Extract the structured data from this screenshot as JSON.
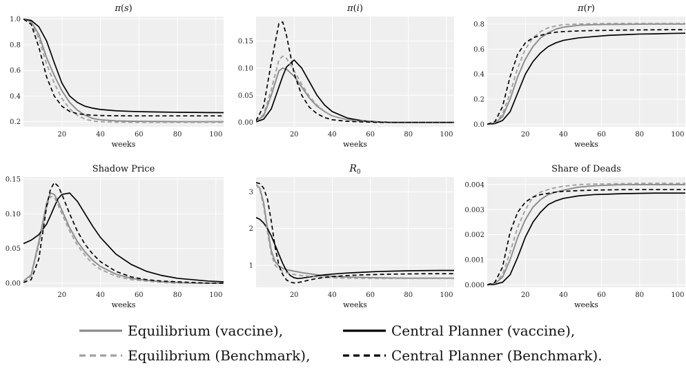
{
  "colors": {
    "panel_bg": "#efefef",
    "grid": "#ffffff",
    "equilibrium": "#8a8a8a",
    "equilibrium_bench": "#a0a0a0",
    "planner": "#000000"
  },
  "legend": {
    "items": [
      {
        "label": "Equilibrium (vaccine),",
        "color": "#8a8a8a",
        "dash": "solid"
      },
      {
        "label": "Central Planner (vaccine),",
        "color": "#000000",
        "dash": "solid"
      },
      {
        "label": "Equilibrium (Benchmark),",
        "color": "#a0a0a0",
        "dash": "dashed"
      },
      {
        "label": "Central Planner (Benchmark).",
        "color": "#000000",
        "dash": "dashed"
      }
    ]
  },
  "chart_data": [
    {
      "type": "line",
      "title": "π(s)",
      "xlabel": "weeks",
      "xlim": [
        0,
        104
      ],
      "ylim": [
        0.16,
        1.02
      ],
      "xticks": [
        20,
        40,
        60,
        80,
        100
      ],
      "yticks": [
        0.2,
        0.4,
        0.6,
        0.8,
        1.0
      ],
      "ytick_labels": [
        "0.2",
        "0.4",
        "0.6",
        "0.8",
        "1.0"
      ],
      "x": [
        0,
        4,
        8,
        12,
        16,
        20,
        24,
        28,
        32,
        36,
        40,
        48,
        56,
        64,
        72,
        80,
        88,
        96,
        104
      ],
      "series": [
        {
          "name": "Equilibrium (vaccine)",
          "values": [
            1.0,
            0.98,
            0.88,
            0.7,
            0.56,
            0.44,
            0.35,
            0.29,
            0.25,
            0.225,
            0.215,
            0.206,
            0.203,
            0.202,
            0.201,
            0.2,
            0.2,
            0.2,
            0.2
          ]
        },
        {
          "name": "Central Planner (vaccine)",
          "values": [
            1.0,
            0.99,
            0.94,
            0.83,
            0.66,
            0.5,
            0.4,
            0.35,
            0.32,
            0.305,
            0.295,
            0.285,
            0.28,
            0.277,
            0.275,
            0.273,
            0.272,
            0.271,
            0.27
          ]
        },
        {
          "name": "Equilibrium (Benchmark)",
          "values": [
            1.0,
            0.97,
            0.85,
            0.65,
            0.5,
            0.38,
            0.3,
            0.25,
            0.22,
            0.205,
            0.2,
            0.196,
            0.195,
            0.195,
            0.195,
            0.195,
            0.195,
            0.195,
            0.195
          ]
        },
        {
          "name": "Central Planner (Benchmark)",
          "values": [
            1.0,
            0.96,
            0.78,
            0.55,
            0.4,
            0.32,
            0.28,
            0.262,
            0.255,
            0.25,
            0.248,
            0.246,
            0.245,
            0.245,
            0.245,
            0.245,
            0.245,
            0.245,
            0.245
          ]
        }
      ]
    },
    {
      "type": "line",
      "title": "π(i)",
      "xlabel": "weeks",
      "xlim": [
        0,
        104
      ],
      "ylim": [
        -0.008,
        0.195
      ],
      "xticks": [
        20,
        40,
        60,
        80,
        100
      ],
      "yticks": [
        0.0,
        0.05,
        0.1,
        0.15
      ],
      "ytick_labels": [
        "0.00",
        "0.05",
        "0.10",
        "0.15"
      ],
      "x": [
        0,
        4,
        8,
        12,
        14,
        16,
        20,
        24,
        28,
        32,
        36,
        40,
        48,
        56,
        64,
        72,
        80,
        88,
        96,
        104
      ],
      "series": [
        {
          "name": "Equilibrium (vaccine)",
          "values": [
            0.002,
            0.012,
            0.05,
            0.095,
            0.1,
            0.098,
            0.085,
            0.065,
            0.045,
            0.03,
            0.02,
            0.012,
            0.005,
            0.002,
            0.001,
            0.0,
            0.0,
            0.0,
            0.0,
            0.0
          ]
        },
        {
          "name": "Central Planner (vaccine)",
          "values": [
            0.001,
            0.006,
            0.025,
            0.065,
            0.085,
            0.102,
            0.115,
            0.1,
            0.075,
            0.05,
            0.032,
            0.02,
            0.008,
            0.003,
            0.001,
            0.0,
            0.0,
            0.0,
            0.0,
            0.0
          ]
        },
        {
          "name": "Equilibrium (Benchmark)",
          "values": [
            0.002,
            0.015,
            0.06,
            0.115,
            0.122,
            0.118,
            0.095,
            0.07,
            0.048,
            0.032,
            0.02,
            0.012,
            0.005,
            0.002,
            0.001,
            0.0,
            0.0,
            0.0,
            0.0,
            0.0
          ]
        },
        {
          "name": "Central Planner (Benchmark)",
          "values": [
            0.003,
            0.03,
            0.11,
            0.182,
            0.185,
            0.16,
            0.09,
            0.05,
            0.028,
            0.016,
            0.009,
            0.005,
            0.002,
            0.001,
            0.0,
            0.0,
            0.0,
            0.0,
            0.0,
            0.0
          ]
        }
      ]
    },
    {
      "type": "line",
      "title": "π(r)",
      "xlabel": "weeks",
      "xlim": [
        0,
        104
      ],
      "ylim": [
        -0.02,
        0.86
      ],
      "xticks": [
        20,
        40,
        60,
        80,
        100
      ],
      "yticks": [
        0.0,
        0.2,
        0.4,
        0.6,
        0.8
      ],
      "ytick_labels": [
        "0.0",
        "0.2",
        "0.4",
        "0.6",
        "0.8"
      ],
      "x": [
        0,
        4,
        8,
        12,
        16,
        20,
        24,
        28,
        32,
        36,
        40,
        48,
        56,
        64,
        72,
        80,
        88,
        96,
        104
      ],
      "series": [
        {
          "name": "Equilibrium (vaccine)",
          "values": [
            0.0,
            0.01,
            0.06,
            0.2,
            0.38,
            0.52,
            0.62,
            0.69,
            0.73,
            0.76,
            0.775,
            0.79,
            0.795,
            0.797,
            0.798,
            0.799,
            0.8,
            0.8,
            0.8
          ]
        },
        {
          "name": "Central Planner (vaccine)",
          "values": [
            0.0,
            0.005,
            0.03,
            0.1,
            0.25,
            0.4,
            0.5,
            0.57,
            0.62,
            0.65,
            0.67,
            0.69,
            0.7,
            0.71,
            0.715,
            0.72,
            0.722,
            0.725,
            0.727
          ]
        },
        {
          "name": "Equilibrium (Benchmark)",
          "values": [
            0.0,
            0.012,
            0.08,
            0.25,
            0.45,
            0.6,
            0.69,
            0.74,
            0.77,
            0.785,
            0.795,
            0.8,
            0.803,
            0.805,
            0.805,
            0.805,
            0.805,
            0.805,
            0.805
          ]
        },
        {
          "name": "Central Planner (Benchmark)",
          "values": [
            0.0,
            0.02,
            0.14,
            0.38,
            0.56,
            0.65,
            0.69,
            0.71,
            0.725,
            0.735,
            0.74,
            0.745,
            0.748,
            0.75,
            0.752,
            0.753,
            0.754,
            0.755,
            0.755
          ]
        }
      ]
    },
    {
      "type": "line",
      "title": "Shadow Price",
      "xlabel": "weeks",
      "xlim": [
        0,
        104
      ],
      "ylim": [
        -0.006,
        0.153
      ],
      "xticks": [
        20,
        40,
        60,
        80,
        100
      ],
      "yticks": [
        0.0,
        0.05,
        0.1,
        0.15
      ],
      "ytick_labels": [
        "0.00",
        "0.05",
        "0.10",
        "0.15"
      ],
      "x": [
        0,
        4,
        8,
        12,
        14,
        16,
        18,
        20,
        24,
        28,
        32,
        36,
        40,
        48,
        56,
        64,
        72,
        80,
        88,
        96,
        104
      ],
      "series": [
        {
          "name": "Equilibrium (vaccine)",
          "values": [
            0.003,
            0.012,
            0.06,
            0.115,
            0.13,
            0.128,
            0.118,
            0.105,
            0.08,
            0.06,
            0.045,
            0.033,
            0.024,
            0.013,
            0.007,
            0.004,
            0.002,
            0.001,
            0.0,
            0.0,
            0.0
          ]
        },
        {
          "name": "Central Planner (vaccine)",
          "values": [
            0.057,
            0.062,
            0.07,
            0.085,
            0.097,
            0.11,
            0.122,
            0.128,
            0.13,
            0.118,
            0.1,
            0.082,
            0.066,
            0.042,
            0.027,
            0.017,
            0.011,
            0.007,
            0.005,
            0.003,
            0.002
          ]
        },
        {
          "name": "Equilibrium (Benchmark)",
          "values": [
            0.002,
            0.01,
            0.055,
            0.11,
            0.125,
            0.124,
            0.113,
            0.1,
            0.075,
            0.055,
            0.04,
            0.028,
            0.02,
            0.01,
            0.005,
            0.003,
            0.001,
            0.0,
            0.0,
            0.0,
            0.0
          ]
        },
        {
          "name": "Central Planner (Benchmark)",
          "values": [
            0.001,
            0.005,
            0.035,
            0.11,
            0.135,
            0.145,
            0.14,
            0.128,
            0.1,
            0.075,
            0.056,
            0.042,
            0.031,
            0.017,
            0.009,
            0.005,
            0.003,
            0.002,
            0.001,
            0.0,
            0.0
          ]
        }
      ]
    },
    {
      "type": "line",
      "title": "R0",
      "xlabel": "weeks",
      "xlim": [
        0,
        104
      ],
      "ylim": [
        0.4,
        3.4
      ],
      "xticks": [
        20,
        40,
        60,
        80,
        100
      ],
      "yticks": [
        1,
        2,
        3
      ],
      "ytick_labels": [
        "1",
        "2",
        "3"
      ],
      "x": [
        0,
        2,
        4,
        6,
        8,
        10,
        12,
        14,
        16,
        18,
        20,
        22,
        24,
        28,
        32,
        36,
        40,
        48,
        56,
        64,
        72,
        80,
        88,
        96,
        104
      ],
      "series": [
        {
          "name": "Equilibrium (vaccine)",
          "values": [
            3.2,
            3.1,
            2.7,
            2.0,
            1.4,
            1.1,
            0.98,
            0.92,
            0.88,
            0.86,
            0.84,
            0.82,
            0.8,
            0.77,
            0.74,
            0.72,
            0.7,
            0.68,
            0.67,
            0.66,
            0.655,
            0.65,
            0.65,
            0.65,
            0.65
          ]
        },
        {
          "name": "Central Planner (vaccine)",
          "values": [
            2.3,
            2.25,
            2.15,
            2.0,
            1.8,
            1.55,
            1.3,
            1.05,
            0.85,
            0.72,
            0.66,
            0.64,
            0.65,
            0.68,
            0.71,
            0.74,
            0.76,
            0.79,
            0.81,
            0.83,
            0.84,
            0.85,
            0.855,
            0.86,
            0.86
          ]
        },
        {
          "name": "Equilibrium (Benchmark)",
          "values": [
            3.2,
            3.05,
            2.6,
            1.9,
            1.3,
            1.0,
            0.9,
            0.84,
            0.8,
            0.77,
            0.75,
            0.73,
            0.72,
            0.7,
            0.68,
            0.67,
            0.66,
            0.65,
            0.645,
            0.64,
            0.64,
            0.64,
            0.64,
            0.64,
            0.64
          ]
        },
        {
          "name": "Central Planner (Benchmark)",
          "values": [
            3.25,
            3.22,
            3.1,
            2.8,
            2.2,
            1.5,
            1.0,
            0.75,
            0.6,
            0.54,
            0.52,
            0.53,
            0.55,
            0.6,
            0.64,
            0.67,
            0.69,
            0.72,
            0.74,
            0.75,
            0.76,
            0.765,
            0.77,
            0.77,
            0.77
          ]
        }
      ]
    },
    {
      "type": "line",
      "title": "Share of Deads",
      "xlabel": "weeks",
      "xlim": [
        0,
        104
      ],
      "ylim": [
        -0.0001,
        0.0043
      ],
      "xticks": [
        20,
        40,
        60,
        80,
        100
      ],
      "yticks": [
        0.0,
        0.001,
        0.002,
        0.003,
        0.004
      ],
      "ytick_labels": [
        "0.000",
        "0.001",
        "0.002",
        "0.003",
        "0.004"
      ],
      "x": [
        0,
        4,
        8,
        12,
        16,
        20,
        24,
        28,
        32,
        36,
        40,
        48,
        56,
        64,
        72,
        80,
        88,
        96,
        104
      ],
      "series": [
        {
          "name": "Equilibrium (vaccine)",
          "values": [
            0.0,
            5e-05,
            0.0003,
            0.001,
            0.0019,
            0.0026,
            0.0031,
            0.0034,
            0.0036,
            0.0037,
            0.00378,
            0.0039,
            0.00395,
            0.00398,
            0.004,
            0.004,
            0.004,
            0.004,
            0.004
          ]
        },
        {
          "name": "Central Planner (vaccine)",
          "values": [
            0.0,
            2e-05,
            0.0001,
            0.0004,
            0.0011,
            0.0019,
            0.0025,
            0.0029,
            0.0032,
            0.00335,
            0.00345,
            0.00355,
            0.0036,
            0.00362,
            0.00364,
            0.00365,
            0.00366,
            0.00366,
            0.00366
          ]
        },
        {
          "name": "Equilibrium (Benchmark)",
          "values": [
            0.0,
            6e-05,
            0.0004,
            0.0013,
            0.0023,
            0.003,
            0.0035,
            0.0037,
            0.0038,
            0.00388,
            0.00393,
            0.004,
            0.00402,
            0.00403,
            0.00404,
            0.00405,
            0.00405,
            0.00405,
            0.00405
          ]
        },
        {
          "name": "Central Planner (Benchmark)",
          "values": [
            0.0,
            0.0001,
            0.0007,
            0.0021,
            0.0029,
            0.0033,
            0.0035,
            0.0036,
            0.00365,
            0.0037,
            0.00373,
            0.00376,
            0.00378,
            0.00379,
            0.0038,
            0.0038,
            0.0038,
            0.0038,
            0.0038
          ]
        }
      ]
    }
  ]
}
